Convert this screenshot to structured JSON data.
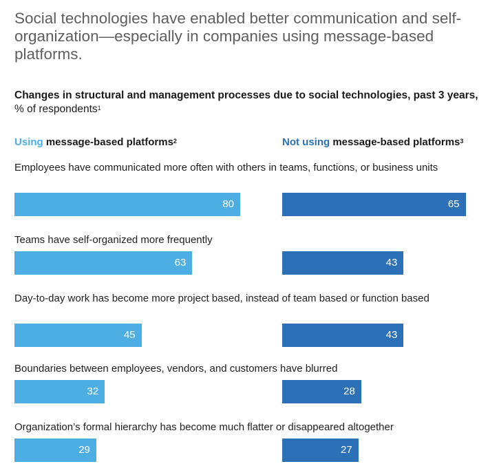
{
  "headline": "Social technologies have enabled better communication and self-organization—especially in companies using message-based platforms.",
  "subtitle": {
    "bold": "Changes in structural and management processes due to social technologies, past 3 years,",
    "normal": "% of respondents",
    "footnote": "1"
  },
  "colors": {
    "using": "#4daee3",
    "not_using": "#2c71b8"
  },
  "chart_data": {
    "type": "bar",
    "orientation": "horizontal",
    "title": "Changes in structural and management processes due to social technologies, past 3 years, % of respondents",
    "xlim": [
      0,
      100
    ],
    "categories": [
      "Employees have communicated more often with others in teams, functions, or business units",
      "Teams have self-organized more frequently",
      "Day-to-day work has become more project based, instead of team based or function based",
      "Boundaries between employees, vendors, and customers have blurred",
      "Organization’s formal hierarchy has become much flatter or disappeared altogether"
    ],
    "series": [
      {
        "name": "Using message-based platforms",
        "highlight": "Using",
        "rest": "message-based platforms",
        "footnote": "2",
        "values": [
          80,
          63,
          45,
          32,
          29
        ]
      },
      {
        "name": "Not using message-based platforms",
        "highlight": "Not using",
        "rest": "message-based platforms",
        "footnote": "3",
        "values": [
          65,
          43,
          43,
          28,
          27
        ]
      }
    ]
  }
}
